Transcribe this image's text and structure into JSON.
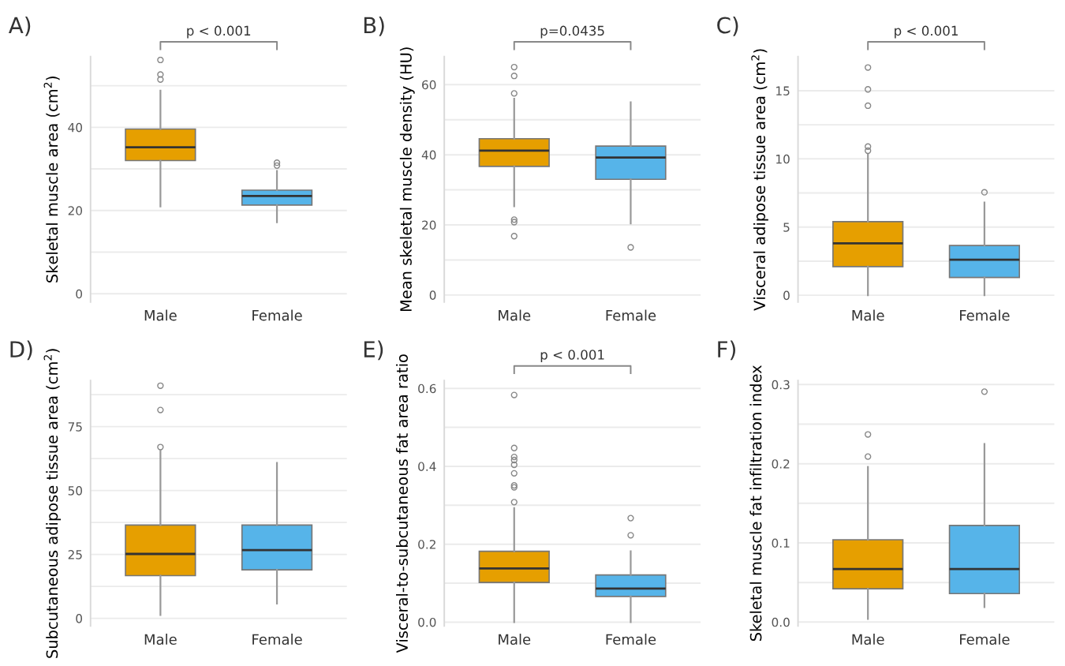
{
  "chart_data": [
    {
      "type": "box",
      "title": "A)",
      "ylabel": "Skeletal muscle area (cm$^{2}$)",
      "categories": [
        "Male",
        "Female"
      ],
      "colors": [
        "#e69f00",
        "#56b4e9"
      ],
      "boxes": [
        {
          "low": 21,
          "q1": 32,
          "median": 35.2,
          "q3": 39.6,
          "high": 48.8,
          "outliers": [
            51.5,
            52.7,
            56.2
          ]
        },
        {
          "low": 17.2,
          "q1": 21.3,
          "median": 23.5,
          "q3": 24.9,
          "high": 29.5,
          "outliers": [
            30.8,
            31.5
          ]
        }
      ],
      "ylim": [
        -2,
        57
      ],
      "yticks": [
        0,
        {
          "value": 10,
          "label": null
        },
        20,
        {
          "value": 30,
          "label": null
        },
        40,
        {
          "value": 50,
          "label": null
        }
      ],
      "grid": "y",
      "annotations": [
        "p < 0.001"
      ]
    },
    {
      "type": "box",
      "title": "B)",
      "ylabel": "Mean skeletal muscle density (HU)",
      "categories": [
        "Male",
        "Female"
      ],
      "colors": [
        "#e69f00",
        "#56b4e9"
      ],
      "boxes": [
        {
          "low": 25.3,
          "q1": 36.7,
          "median": 41.2,
          "q3": 44.6,
          "high": 56,
          "outliers": [
            16.8,
            20.8,
            21.5,
            57.5,
            62.5,
            65
          ]
        },
        {
          "low": 20.4,
          "q1": 33,
          "median": 39.2,
          "q3": 42.5,
          "high": 55,
          "outliers": [
            13.6
          ]
        }
      ],
      "ylim": [
        -2,
        68
      ],
      "yticks": [
        0,
        {
          "value": 10,
          "label": null
        },
        20,
        {
          "value": 30,
          "label": null
        },
        40,
        {
          "value": 50,
          "label": null
        },
        60
      ],
      "grid": "y",
      "annotations": [
        "p=0.0435"
      ]
    },
    {
      "type": "box",
      "title": "C)",
      "ylabel": "Visceral adipose tissue area (cm$^{2}$)",
      "categories": [
        "Male",
        "Female"
      ],
      "colors": [
        "#e69f00",
        "#56b4e9"
      ],
      "boxes": [
        {
          "low": 0,
          "q1": 2.1,
          "median": 3.8,
          "q3": 5.4,
          "high": 10.3,
          "outliers": [
            10.6,
            10.9,
            13.9,
            15.1,
            16.7
          ]
        },
        {
          "low": 0,
          "q1": 1.3,
          "median": 2.6,
          "q3": 3.65,
          "high": 6.8,
          "outliers": [
            7.55
          ]
        }
      ],
      "ylim": [
        -0.5,
        17.5
      ],
      "yticks": [
        0,
        {
          "value": 2.5,
          "label": null
        },
        5,
        {
          "value": 7.5,
          "label": null
        },
        10,
        {
          "value": 12.5,
          "label": null
        },
        15
      ],
      "grid": "y",
      "annotations": [
        "p < 0.001"
      ]
    },
    {
      "type": "box",
      "title": "D)",
      "ylabel": "Subcutaneous adipose tissue area (cm$^{2}$)",
      "categories": [
        "Male",
        "Female"
      ],
      "colors": [
        "#e69f00",
        "#56b4e9"
      ],
      "boxes": [
        {
          "low": 1.3,
          "q1": 16.7,
          "median": 25.2,
          "q3": 36.5,
          "high": 65.5,
          "outliers": [
            67,
            81.5,
            91
          ]
        },
        {
          "low": 5.8,
          "q1": 19,
          "median": 26.7,
          "q3": 36.5,
          "high": 60.8
        }
      ],
      "ylim": [
        -3,
        93
      ],
      "yticks": [
        0,
        {
          "value": 12.5,
          "label": null
        },
        25,
        {
          "value": 37.5,
          "label": null
        },
        50,
        {
          "value": 62.5,
          "label": null
        },
        75,
        {
          "value": 87.5,
          "label": null
        }
      ],
      "grid": "y"
    },
    {
      "type": "box",
      "title": "E)",
      "ylabel": "Visceral-to-subcutaneous fat area ratio",
      "categories": [
        "Male",
        "Female"
      ],
      "colors": [
        "#e69f00",
        "#56b4e9"
      ],
      "boxes": [
        {
          "low": 0,
          "q1": 0.102,
          "median": 0.138,
          "q3": 0.182,
          "high": 0.293,
          "outliers": [
            0.308,
            0.346,
            0.351,
            0.382,
            0.404,
            0.416,
            0.424,
            0.447,
            0.583
          ]
        },
        {
          "low": 0,
          "q1": 0.066,
          "median": 0.086,
          "q3": 0.121,
          "high": 0.182,
          "outliers": [
            0.223,
            0.267
          ]
        }
      ],
      "ylim": [
        -0.01,
        0.62
      ],
      "yticks": [
        {
          "value": 0,
          "label": "0.0"
        },
        {
          "value": 0.1,
          "label": null
        },
        {
          "value": 0.2,
          "label": "0.2"
        },
        {
          "value": 0.3,
          "label": null
        },
        {
          "value": 0.4,
          "label": "0.4"
        },
        {
          "value": 0.5,
          "label": null
        },
        {
          "value": 0.6,
          "label": "0.6"
        }
      ],
      "grid": "y",
      "annotations": [
        "p < 0.001"
      ]
    },
    {
      "type": "box",
      "title": "F)",
      "ylabel": "Skeletal muscle fat infiltration index",
      "categories": [
        "Male",
        "Female"
      ],
      "colors": [
        "#e69f00",
        "#56b4e9"
      ],
      "boxes": [
        {
          "low": 0.004,
          "q1": 0.042,
          "median": 0.067,
          "q3": 0.104,
          "high": 0.196,
          "outliers": [
            0.209,
            0.237
          ]
        },
        {
          "low": 0.019,
          "q1": 0.036,
          "median": 0.067,
          "q3": 0.122,
          "high": 0.225,
          "outliers": [
            0.291
          ]
        }
      ],
      "ylim": [
        -0.005,
        0.305
      ],
      "yticks": [
        {
          "value": 0,
          "label": "0.0"
        },
        {
          "value": 0.05,
          "label": null
        },
        0.1,
        {
          "value": 0.15,
          "label": null
        },
        0.2,
        {
          "value": 0.25,
          "label": null
        },
        0.3
      ],
      "grid": "y"
    }
  ]
}
